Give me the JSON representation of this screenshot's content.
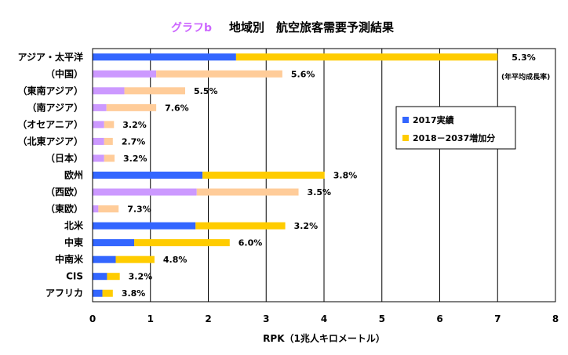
{
  "chart_data": {
    "type": "bar",
    "orientation": "horizontal",
    "stacked": true,
    "label": "グラフb",
    "title": "地域別　航空旅客需要予測結果",
    "xlabel": "RPK（1兆人キロメートル）",
    "ylabel": "",
    "xlim": [
      0,
      8
    ],
    "xticks": [
      "0",
      "1",
      "2",
      "3",
      "4",
      "5",
      "6",
      "7",
      "8"
    ],
    "grid": true,
    "legend": {
      "position": "right",
      "entries": [
        {
          "name": "2017実績",
          "color": "#3366ff"
        },
        {
          "name": "2018－2037増加分",
          "color": "#ffcc00"
        }
      ]
    },
    "note": "(年平均成長率)",
    "categories": [
      "アジア・太平洋",
      "（中国）",
      "（東南アジア）",
      "（南アジア）",
      "（オセアニア）",
      "（北東アジア）",
      "（日本）",
      "欧州",
      "（西欧）",
      "（東欧）",
      "北米",
      "中東",
      "中南米",
      "CIS",
      "アフリカ"
    ],
    "is_sub_region": [
      false,
      true,
      true,
      true,
      true,
      true,
      true,
      false,
      true,
      true,
      false,
      false,
      false,
      false,
      false
    ],
    "series": [
      {
        "name": "2017実績",
        "values": [
          2.48,
          1.1,
          0.55,
          0.24,
          0.2,
          0.2,
          0.2,
          1.9,
          1.8,
          0.1,
          1.78,
          0.72,
          0.4,
          0.25,
          0.17
        ]
      },
      {
        "name": "2018－2037増加分",
        "values": [
          4.52,
          2.18,
          1.05,
          0.86,
          0.17,
          0.15,
          0.18,
          2.11,
          1.76,
          0.35,
          1.55,
          1.65,
          0.67,
          0.22,
          0.18
        ]
      }
    ],
    "growth_labels": [
      "5.3%",
      "5.6%",
      "5.5%",
      "7.6%",
      "3.2%",
      "2.7%",
      "3.2%",
      "3.8%",
      "3.5%",
      "7.3%",
      "3.2%",
      "6.0%",
      "4.8%",
      "3.2%",
      "3.8%"
    ],
    "colors": {
      "main_base": "#3366ff",
      "main_increase": "#ffcc00",
      "sub_base": "#cc99ff",
      "sub_increase": "#ffcc99",
      "label": "#cc66ff"
    }
  }
}
